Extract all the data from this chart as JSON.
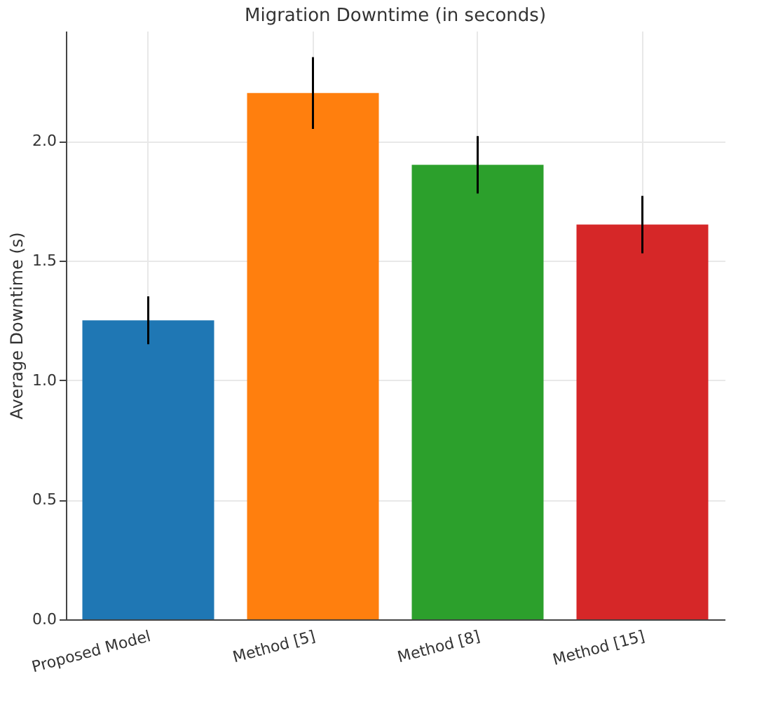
{
  "chart_data": {
    "type": "bar",
    "title": "Migration Downtime (in seconds)",
    "ylabel": "Average Downtime (s)",
    "categories": [
      "Proposed Model",
      "Method [5]",
      "Method [8]",
      "Method [15]"
    ],
    "values": [
      1.25,
      2.2,
      1.9,
      1.65
    ],
    "errors": [
      0.1,
      0.15,
      0.12,
      0.12
    ],
    "colors": [
      "#1f77b4",
      "#ff7f0e",
      "#2ca02c",
      "#d62728"
    ],
    "ylim": [
      0,
      2.46
    ],
    "yticks": [
      {
        "value": 0,
        "label": "0.0"
      },
      0.5,
      {
        "value": 1,
        "label": "1.0"
      },
      1.5,
      {
        "value": 2,
        "label": "2.0"
      }
    ],
    "grid": true
  }
}
